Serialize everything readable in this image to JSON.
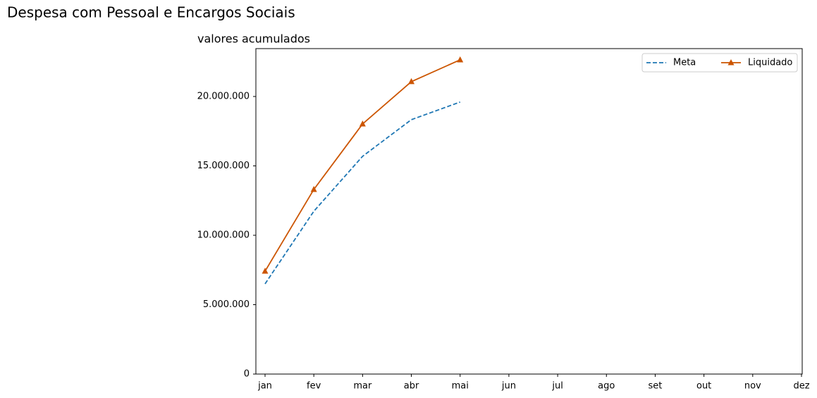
{
  "chart_data": {
    "type": "line",
    "title": "Despesa com Pessoal e Encargos Sociais",
    "subtitle": "valores acumulados",
    "categories": [
      "jan",
      "fev",
      "mar",
      "abr",
      "mai",
      "jun",
      "jul",
      "ago",
      "set",
      "out",
      "nov",
      "dez"
    ],
    "series": [
      {
        "name": "Meta",
        "color": "#1f77b4",
        "linestyle": "dashed",
        "marker": "none",
        "values": [
          6500000,
          11730000,
          15690000,
          18330000,
          19600000,
          null,
          null,
          null,
          null,
          null,
          null,
          null
        ]
      },
      {
        "name": "Liquidado",
        "color": "#cc5500",
        "linestyle": "solid",
        "marker": "triangle",
        "values": [
          7410000,
          13300000,
          18020000,
          21070000,
          22640000,
          null,
          null,
          null,
          null,
          null,
          null,
          null
        ]
      }
    ],
    "ylim": [
      0,
      23450000
    ],
    "yticks": [
      0,
      {
        "value": 5000000,
        "label": "5.000.000"
      },
      {
        "value": 10000000,
        "label": "10.000.000"
      },
      {
        "value": 15000000,
        "label": "15.000.000"
      },
      {
        "value": 20000000,
        "label": "20.000.000"
      }
    ],
    "legend": "upper right",
    "grid": false
  }
}
